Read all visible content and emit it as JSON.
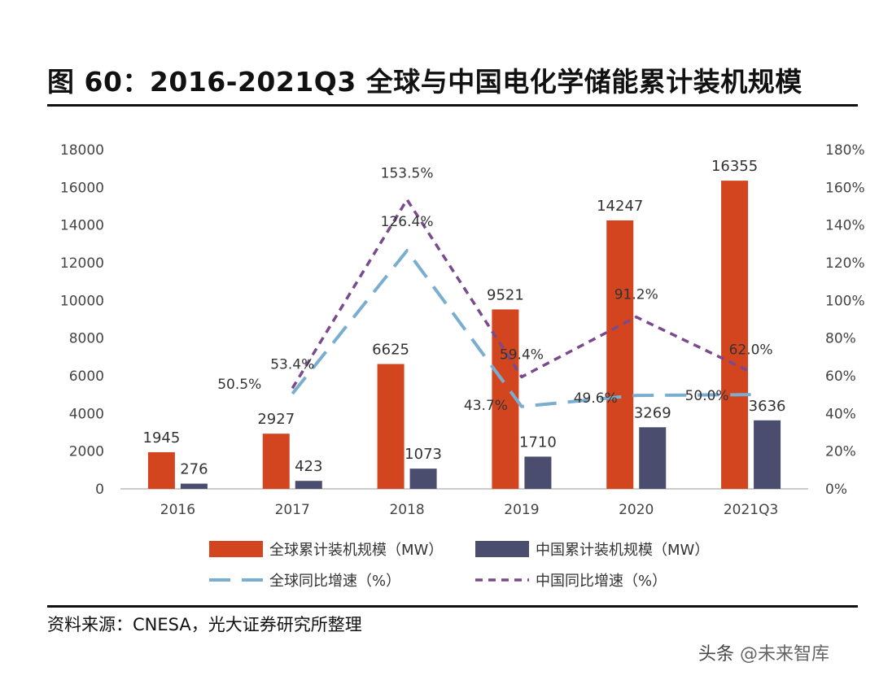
{
  "header": {
    "title": "图 60：2016-2021Q3 全球与中国电化学储能累计装机规模"
  },
  "footer": {
    "source": "资料来源：CNESA，光大证券研究所整理",
    "watermark_prefix": "头条",
    "watermark_brand": "@未来智库"
  },
  "colors": {
    "global_bar": "#d2451e",
    "china_bar": "#4a4d6e",
    "global_line": "#7aaed0",
    "china_line": "#7a4a8c"
  },
  "chart_data": {
    "type": "bar",
    "categories": [
      "2016",
      "2017",
      "2018",
      "2019",
      "2020",
      "2021Q3"
    ],
    "series": [
      {
        "name": "全球累计装机规模（MW）",
        "kind": "bar",
        "axis": "left",
        "values": [
          1945,
          2927,
          6625,
          9521,
          14247,
          16355
        ]
      },
      {
        "name": "中国累计装机规模（MW）",
        "kind": "bar",
        "axis": "left",
        "values": [
          276,
          423,
          1073,
          1710,
          3269,
          3636
        ]
      },
      {
        "name": "全球同比增速（%）",
        "kind": "line",
        "style": "dashed",
        "axis": "right",
        "x": [
          "2017",
          "2018",
          "2019",
          "2020",
          "2021Q3"
        ],
        "values": [
          50.5,
          126.4,
          43.7,
          49.6,
          50.0
        ],
        "labels": [
          "50.5%",
          "126.4%",
          "43.7%",
          "49.6%",
          "50.0%"
        ]
      },
      {
        "name": "中国同比增速（%）",
        "kind": "line",
        "style": "dotted",
        "axis": "right",
        "x": [
          "2017",
          "2018",
          "2019",
          "2020",
          "2021Q3"
        ],
        "values": [
          53.4,
          153.5,
          59.4,
          91.2,
          62.0
        ],
        "labels": [
          "53.4%",
          "153.5%",
          "59.4%",
          "91.2%",
          "62.0%"
        ]
      }
    ],
    "left_axis": {
      "ylim": [
        0,
        18000
      ],
      "ticks": [
        "0",
        "2000",
        "4000",
        "6000",
        "8000",
        "10000",
        "12000",
        "14000",
        "16000",
        "18000"
      ]
    },
    "right_axis": {
      "ylim": [
        0,
        180
      ],
      "ticks": [
        "0%",
        "20%",
        "40%",
        "60%",
        "80%",
        "100%",
        "120%",
        "140%",
        "160%",
        "180%"
      ]
    },
    "legend_position": "bottom"
  }
}
